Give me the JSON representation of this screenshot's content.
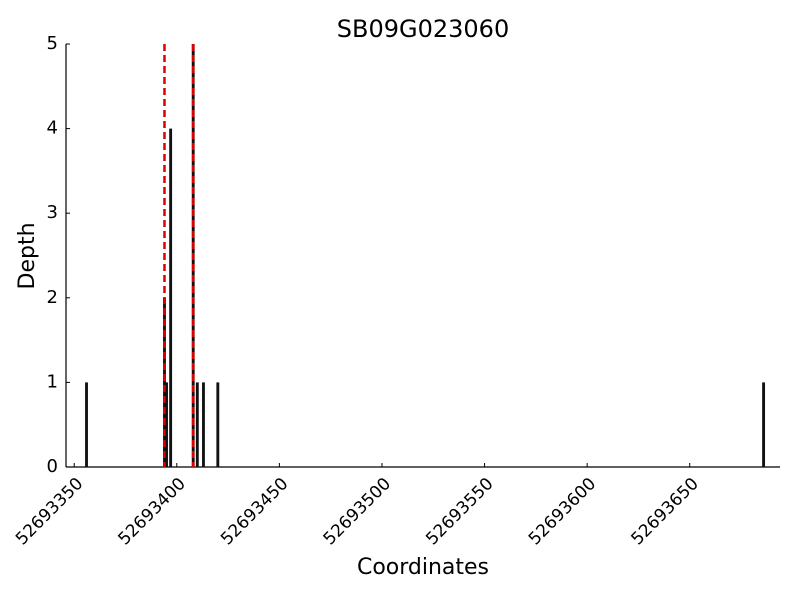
{
  "chart_data": {
    "type": "bar",
    "title": "SB09G023060",
    "x_label": "Coordinates",
    "y_label": "Depth",
    "x": [
      52693356,
      52693394,
      52693395,
      52693397,
      52693408,
      52693410,
      52693413,
      52693420,
      52693686
    ],
    "values": [
      1,
      2,
      1,
      4,
      5,
      1,
      1,
      1,
      1
    ],
    "color": "#111111",
    "xlim": [
      52693346,
      52693694
    ],
    "xticks": [
      52693350,
      52693400,
      52693450,
      52693500,
      52693550,
      52693600,
      52693650
    ],
    "ylim": [
      0,
      5
    ],
    "yticks": [
      0,
      1,
      2,
      3,
      4,
      5
    ],
    "grid": false,
    "vlines": [
      {
        "x": 52693394,
        "color": "#dd0000"
      },
      {
        "x": 52693408,
        "color": "#111111"
      },
      {
        "x": 52693408,
        "color": "#dd0000"
      }
    ]
  }
}
